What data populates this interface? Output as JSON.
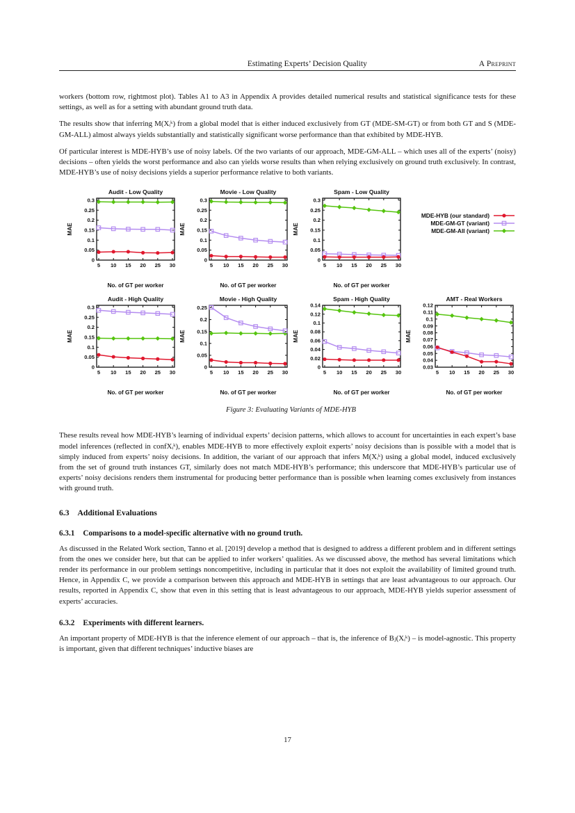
{
  "header": {
    "center_title": "Estimating Experts’ Decision Quality",
    "right_label": "A Preprint"
  },
  "page_number": "17",
  "paragraphs": {
    "p1": "workers (bottom row, rightmost plot). Tables A1 to A3 in Appendix A provides detailed numerical results and statistical significance tests for these settings, as well as for a setting with abundant ground truth data.",
    "p2": "The results show that inferring M(Xᵢᵏ) from a global model that is either induced exclusively from GT (MDE-SM-GT) or from both GT and S (MDE-GM-ALL) almost always yields substantially and statistically significant worse performance than that exhibited by MDE-HYB.",
    "p3": "Of particular interest is MDE-HYB’s use of noisy labels. Of the two variants of our approach, MDE-GM-ALL – which uses all of the experts’ (noisy) decisions – often yields the worst performance and also can yields worse results than when relying exclusively on ground truth exclusively. In contrast, MDE-HYB’s use of noisy decisions yields a superior performance relative to both variants.",
    "p4": "These results reveal how MDE-HYB’s learning of individual experts’ decision patterns, which allows to account for uncertainties in each expert’s base model inferences (reflected in confXᵢᵏ), enables MDE-HYB to more effectively exploit experts’ noisy decisions than is possible with a model that is simply induced from experts’ noisy decisions. In addition, the variant of our approach that infers M(Xᵢᵏ) using a global model, induced exclusively from the set of ground truth instances GT, similarly does not match MDE-HYB’s performance; this underscore that MDE-HYB’s particular use of experts’ noisy decisions renders them instrumental for producing better performance than is possible when learning comes exclusively from instances with ground truth.",
    "p5": "As discussed in the Related Work section, Tanno et al. [2019] develop a method that is designed to address a different problem and in different settings from the ones we consider here, but that can be applied to infer workers’ qualities. As we discussed above, the method has several limitations which render its performance in our problem settings noncompetitive, including in particular that it does not exploit the availability of limited ground truth. Hence, in Appendix C, we provide a comparison between this approach and MDE-HYB in settings that are least advantageous to our approach. Our results, reported in Appendix C, show that even in this setting that is least advantageous to our approach, MDE-HYB yields superior assessment of experts’ accuracies.",
    "p6": "An important property of MDE-HYB is that the inference element of our approach – that is, the inference of Bⱼ(Xᵢᵏ) – is model-agnostic. This property is important, given that different techniques’ inductive biases are"
  },
  "sections": {
    "s63": {
      "number": "6.3",
      "title": "Additional Evaluations"
    },
    "s631": {
      "number": "6.3.1",
      "title": "Comparisons to a model-specific alternative with no ground truth."
    },
    "s632": {
      "number": "6.3.2",
      "title": "Experiments with different learners."
    }
  },
  "figure": {
    "caption": "Figure 3: Evaluating Variants of MDE-HYB",
    "legend": [
      {
        "label": "MDE-HYB (our standard)",
        "key": "mde_hyb"
      },
      {
        "label": "MDE-GM-GT (variant)",
        "key": "mde_gm_gt"
      },
      {
        "label": "MDE-GM-All (variant)",
        "key": "mde_gm_all"
      }
    ],
    "series_styles": {
      "mde_hyb": {
        "color": "#e0182e",
        "marker": "circle"
      },
      "mde_gm_gt": {
        "color": "#b48cf0",
        "marker": "square-open"
      },
      "mde_gm_all": {
        "color": "#55c40e",
        "marker": "diamond"
      }
    }
  },
  "chart_data": [
    {
      "type": "line",
      "row": 1,
      "title": "Audit - Low Quality",
      "xlabel": "No. of GT per worker",
      "ylabel": "MAE",
      "x": [
        5,
        10,
        15,
        20,
        25,
        30
      ],
      "xlim": [
        4.3,
        30.7
      ],
      "yticks": [
        0,
        0.05,
        0.1,
        0.15,
        0.2,
        0.25,
        0.3
      ],
      "ylim": [
        0,
        0.31
      ],
      "series": [
        {
          "name": "MDE-HYB (our standard)",
          "key": "mde_hyb",
          "values": [
            0.04,
            0.042,
            0.042,
            0.037,
            0.036,
            0.038
          ]
        },
        {
          "name": "MDE-GM-GT (variant)",
          "key": "mde_gm_gt",
          "values": [
            0.162,
            0.157,
            0.155,
            0.154,
            0.154,
            0.15
          ]
        },
        {
          "name": "MDE-GM-All (variant)",
          "key": "mde_gm_all",
          "values": [
            0.292,
            0.291,
            0.291,
            0.291,
            0.29,
            0.291
          ]
        }
      ]
    },
    {
      "type": "line",
      "row": 1,
      "title": "Movie - Low Quality",
      "xlabel": "No. of GT per worker",
      "ylabel": "MAE",
      "x": [
        5,
        10,
        15,
        20,
        25,
        30
      ],
      "xlim": [
        4.3,
        30.7
      ],
      "yticks": [
        0,
        0.05,
        0.1,
        0.15,
        0.2,
        0.25,
        0.3
      ],
      "ylim": [
        0,
        0.31
      ],
      "series": [
        {
          "name": "MDE-HYB (our standard)",
          "key": "mde_hyb",
          "values": [
            0.022,
            0.018,
            0.018,
            0.016,
            0.015,
            0.015
          ]
        },
        {
          "name": "MDE-GM-GT (variant)",
          "key": "mde_gm_gt",
          "values": [
            0.145,
            0.123,
            0.11,
            0.1,
            0.094,
            0.09
          ]
        },
        {
          "name": "MDE-GM-All (variant)",
          "key": "mde_gm_all",
          "values": [
            0.294,
            0.291,
            0.29,
            0.289,
            0.289,
            0.288
          ]
        }
      ]
    },
    {
      "type": "line",
      "row": 1,
      "title": "Spam - Low Quality",
      "xlabel": "No. of GT per worker",
      "ylabel": "MAE",
      "x": [
        5,
        10,
        15,
        20,
        25,
        30
      ],
      "xlim": [
        4.3,
        30.7
      ],
      "yticks": [
        0,
        0.05,
        0.1,
        0.15,
        0.2,
        0.25,
        0.3
      ],
      "ylim": [
        0,
        0.31
      ],
      "series": [
        {
          "name": "MDE-HYB (our standard)",
          "key": "mde_hyb",
          "values": [
            0.016,
            0.015,
            0.015,
            0.015,
            0.015,
            0.016
          ]
        },
        {
          "name": "MDE-GM-GT (variant)",
          "key": "mde_gm_gt",
          "values": [
            0.032,
            0.03,
            0.028,
            0.026,
            0.025,
            0.024
          ]
        },
        {
          "name": "MDE-GM-All (variant)",
          "key": "mde_gm_all",
          "values": [
            0.272,
            0.266,
            0.261,
            0.252,
            0.246,
            0.24
          ]
        }
      ]
    },
    {
      "type": "line",
      "row": 2,
      "title": "Audit - High Quality",
      "xlabel": "No. of GT per worker",
      "ylabel": "MAE",
      "x": [
        5,
        10,
        15,
        20,
        25,
        30
      ],
      "xlim": [
        4.3,
        30.7
      ],
      "yticks": [
        0,
        0.05,
        0.1,
        0.15,
        0.2,
        0.25,
        0.3
      ],
      "ylim": [
        0,
        0.31
      ],
      "series": [
        {
          "name": "MDE-HYB (our standard)",
          "key": "mde_hyb",
          "values": [
            0.062,
            0.052,
            0.047,
            0.044,
            0.041,
            0.038
          ]
        },
        {
          "name": "MDE-GM-GT (variant)",
          "key": "mde_gm_gt",
          "values": [
            0.285,
            0.279,
            0.275,
            0.272,
            0.269,
            0.265
          ]
        },
        {
          "name": "MDE-GM-All (variant)",
          "key": "mde_gm_all",
          "values": [
            0.145,
            0.144,
            0.144,
            0.144,
            0.144,
            0.143
          ]
        }
      ]
    },
    {
      "type": "line",
      "row": 2,
      "title": "Movie - High Quality",
      "xlabel": "No. of GT per worker",
      "ylabel": "MAE",
      "x": [
        5,
        10,
        15,
        20,
        25,
        30
      ],
      "xlim": [
        4.3,
        30.7
      ],
      "yticks": [
        0,
        0.05,
        0.1,
        0.15,
        0.2,
        0.25
      ],
      "ylim": [
        0,
        0.26
      ],
      "series": [
        {
          "name": "MDE-HYB (our standard)",
          "key": "mde_hyb",
          "values": [
            0.03,
            0.022,
            0.019,
            0.019,
            0.016,
            0.015
          ]
        },
        {
          "name": "MDE-GM-GT (variant)",
          "key": "mde_gm_gt",
          "values": [
            0.251,
            0.208,
            0.186,
            0.171,
            0.161,
            0.153
          ]
        },
        {
          "name": "MDE-GM-All (variant)",
          "key": "mde_gm_all",
          "values": [
            0.142,
            0.144,
            0.142,
            0.142,
            0.141,
            0.142
          ]
        }
      ]
    },
    {
      "type": "line",
      "row": 2,
      "title": "Spam - High Quality",
      "xlabel": "No. of GT per worker",
      "ylabel": "MAE",
      "x": [
        5,
        10,
        15,
        20,
        25,
        30
      ],
      "xlim": [
        4.3,
        30.7
      ],
      "yticks": [
        0,
        0.02,
        0.04,
        0.06,
        0.08,
        0.1,
        0.12,
        0.14
      ],
      "ylim": [
        0,
        0.14
      ],
      "series": [
        {
          "name": "MDE-HYB (our standard)",
          "key": "mde_hyb",
          "values": [
            0.018,
            0.017,
            0.016,
            0.016,
            0.016,
            0.016
          ]
        },
        {
          "name": "MDE-GM-GT (variant)",
          "key": "mde_gm_gt",
          "values": [
            0.058,
            0.045,
            0.042,
            0.038,
            0.035,
            0.032
          ]
        },
        {
          "name": "MDE-GM-All (variant)",
          "key": "mde_gm_all",
          "values": [
            0.132,
            0.128,
            0.124,
            0.121,
            0.118,
            0.117
          ]
        }
      ]
    },
    {
      "type": "line",
      "row": 2,
      "title": "AMT - Real Workers",
      "xlabel": "No. of GT per worker",
      "ylabel": "MAE",
      "x": [
        5,
        10,
        15,
        20,
        25,
        30
      ],
      "xlim": [
        4.3,
        30.7
      ],
      "yticks": [
        0.03,
        0.04,
        0.05,
        0.06,
        0.07,
        0.08,
        0.09,
        0.1,
        0.11,
        0.12
      ],
      "ylim": [
        0.03,
        0.12
      ],
      "series": [
        {
          "name": "MDE-HYB (our standard)",
          "key": "mde_hyb",
          "values": [
            0.059,
            0.052,
            0.046,
            0.038,
            0.038,
            0.035
          ]
        },
        {
          "name": "MDE-GM-GT (variant)",
          "key": "mde_gm_gt",
          "values": [
            0.058,
            0.053,
            0.051,
            0.048,
            0.047,
            0.045
          ]
        },
        {
          "name": "MDE-GM-All (variant)",
          "key": "mde_gm_all",
          "values": [
            0.107,
            0.105,
            0.102,
            0.1,
            0.098,
            0.095
          ]
        }
      ]
    }
  ]
}
